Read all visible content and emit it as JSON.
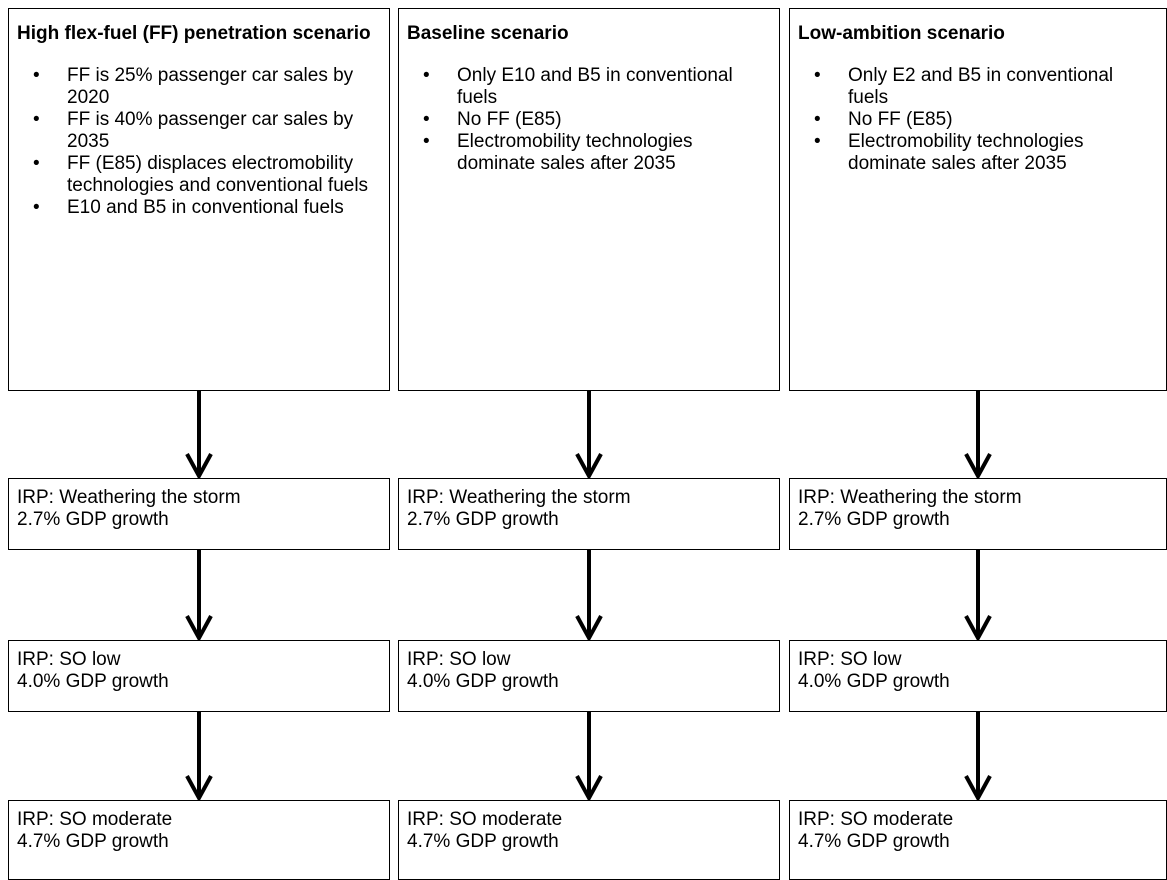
{
  "columns": [
    {
      "title": "High flex-fuel (FF) penetration scenario",
      "bullets": [
        "FF is 25% passenger car sales by 2020",
        "FF is 40% passenger car sales by 2035",
        "FF (E85) displaces electromobility technologies and conventional fuels",
        "E10 and B5 in conventional fuels"
      ],
      "stages": [
        {
          "name": "IRP: Weathering the storm",
          "growth": "2.7% GDP growth"
        },
        {
          "name": "IRP: SO low",
          "growth": "4.0% GDP growth"
        },
        {
          "name": "IRP: SO moderate",
          "growth": "4.7% GDP growth"
        }
      ]
    },
    {
      "title": "Baseline scenario",
      "bullets": [
        "Only E10 and B5 in conventional fuels",
        "No FF (E85)",
        "Electromobility technologies dominate sales after 2035"
      ],
      "stages": [
        {
          "name": "IRP: Weathering the storm",
          "growth": "2.7% GDP growth"
        },
        {
          "name": "IRP: SO low",
          "growth": "4.0% GDP growth"
        },
        {
          "name": "IRP: SO moderate",
          "growth": "4.7% GDP growth"
        }
      ]
    },
    {
      "title": "Low-ambition scenario",
      "bullets": [
        "Only E2 and B5 in conventional fuels",
        "No FF (E85)",
        "Electromobility technologies dominate sales after 2035"
      ],
      "stages": [
        {
          "name": "IRP: Weathering the storm",
          "growth": "2.7% GDP growth"
        },
        {
          "name": "IRP: SO low",
          "growth": "4.0% GDP growth"
        },
        {
          "name": "IRP: SO moderate",
          "growth": "4.7% GDP growth"
        }
      ]
    }
  ]
}
